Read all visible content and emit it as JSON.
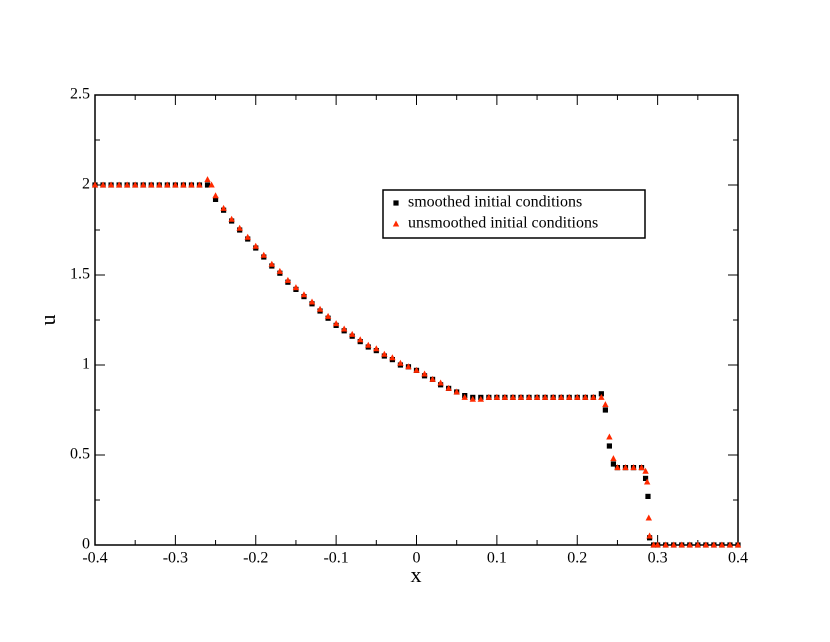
{
  "chart_data": {
    "type": "scatter",
    "x_label": "x",
    "y_label": "u",
    "xlim": [
      -0.4,
      0.4
    ],
    "ylim": [
      0,
      2.5
    ],
    "xticks": [
      -0.4,
      -0.3,
      -0.2,
      -0.1,
      0,
      0.1,
      0.2,
      0.3,
      0.4
    ],
    "yticks": [
      0,
      0.5,
      1,
      1.5,
      2,
      2.5
    ],
    "xminorticks": [
      -0.35,
      -0.25,
      -0.15,
      -0.05,
      0.05,
      0.15,
      0.25,
      0.35
    ],
    "yminorticks": [
      0.25,
      0.75,
      1.25,
      1.75,
      2.25
    ],
    "legend_loc": "upper right",
    "series": [
      {
        "name": "smoothed initial conditions",
        "color": "#000000",
        "marker": "square",
        "x": [
          -0.4,
          -0.39,
          -0.38,
          -0.37,
          -0.36,
          -0.35,
          -0.34,
          -0.33,
          -0.32,
          -0.31,
          -0.3,
          -0.29,
          -0.28,
          -0.27,
          -0.26,
          -0.25,
          -0.24,
          -0.23,
          -0.22,
          -0.21,
          -0.2,
          -0.19,
          -0.18,
          -0.17,
          -0.16,
          -0.15,
          -0.14,
          -0.13,
          -0.12,
          -0.11,
          -0.1,
          -0.09,
          -0.08,
          -0.07,
          -0.06,
          -0.05,
          -0.04,
          -0.03,
          -0.02,
          -0.01,
          0,
          0.01,
          0.02,
          0.03,
          0.04,
          0.05,
          0.06,
          0.07,
          0.08,
          0.09,
          0.1,
          0.11,
          0.12,
          0.13,
          0.14,
          0.15,
          0.16,
          0.17,
          0.18,
          0.19,
          0.2,
          0.21,
          0.22,
          0.23,
          0.235,
          0.24,
          0.245,
          0.25,
          0.26,
          0.27,
          0.28,
          0.285,
          0.288,
          0.29,
          0.295,
          0.3,
          0.31,
          0.32,
          0.33,
          0.34,
          0.35,
          0.36,
          0.37,
          0.38,
          0.39,
          0.4
        ],
        "values": [
          2,
          2,
          2,
          2,
          2,
          2,
          2,
          2,
          2,
          2,
          2,
          2,
          2,
          2,
          2,
          1.92,
          1.86,
          1.8,
          1.75,
          1.7,
          1.65,
          1.6,
          1.55,
          1.51,
          1.46,
          1.42,
          1.38,
          1.34,
          1.3,
          1.26,
          1.22,
          1.19,
          1.16,
          1.13,
          1.1,
          1.08,
          1.05,
          1.03,
          1.0,
          0.99,
          0.97,
          0.94,
          0.92,
          0.89,
          0.87,
          0.85,
          0.83,
          0.82,
          0.82,
          0.82,
          0.82,
          0.82,
          0.82,
          0.82,
          0.82,
          0.82,
          0.82,
          0.82,
          0.82,
          0.82,
          0.82,
          0.82,
          0.82,
          0.84,
          0.75,
          0.55,
          0.45,
          0.43,
          0.43,
          0.43,
          0.43,
          0.37,
          0.27,
          0.04,
          0,
          0,
          0,
          0,
          0,
          0,
          0,
          0,
          0,
          0,
          0,
          0
        ]
      },
      {
        "name": "unsmoothed initial conditions",
        "color": "#ff2a00",
        "marker": "triangle",
        "x": [
          -0.4,
          -0.39,
          -0.38,
          -0.37,
          -0.36,
          -0.35,
          -0.34,
          -0.33,
          -0.32,
          -0.31,
          -0.3,
          -0.29,
          -0.28,
          -0.27,
          -0.26,
          -0.255,
          -0.25,
          -0.24,
          -0.23,
          -0.22,
          -0.21,
          -0.2,
          -0.19,
          -0.18,
          -0.17,
          -0.16,
          -0.15,
          -0.14,
          -0.13,
          -0.12,
          -0.11,
          -0.1,
          -0.09,
          -0.08,
          -0.07,
          -0.06,
          -0.05,
          -0.04,
          -0.03,
          -0.02,
          -0.01,
          0,
          0.01,
          0.02,
          0.03,
          0.04,
          0.05,
          0.06,
          0.07,
          0.08,
          0.09,
          0.1,
          0.11,
          0.12,
          0.13,
          0.14,
          0.15,
          0.16,
          0.17,
          0.18,
          0.19,
          0.2,
          0.21,
          0.22,
          0.23,
          0.235,
          0.24,
          0.245,
          0.25,
          0.26,
          0.27,
          0.28,
          0.285,
          0.287,
          0.289,
          0.29,
          0.295,
          0.3,
          0.31,
          0.32,
          0.33,
          0.34,
          0.35,
          0.36,
          0.37,
          0.38,
          0.39,
          0.4
        ],
        "values": [
          2,
          2,
          2,
          2,
          2,
          2,
          2,
          2,
          2,
          2,
          2,
          2,
          2,
          2,
          2.03,
          2.0,
          1.94,
          1.87,
          1.81,
          1.76,
          1.71,
          1.66,
          1.61,
          1.56,
          1.52,
          1.47,
          1.43,
          1.39,
          1.35,
          1.31,
          1.27,
          1.23,
          1.2,
          1.17,
          1.14,
          1.11,
          1.09,
          1.06,
          1.04,
          1.01,
          0.99,
          0.97,
          0.95,
          0.92,
          0.9,
          0.87,
          0.85,
          0.82,
          0.81,
          0.81,
          0.82,
          0.82,
          0.82,
          0.82,
          0.82,
          0.82,
          0.82,
          0.82,
          0.82,
          0.82,
          0.82,
          0.82,
          0.82,
          0.82,
          0.82,
          0.78,
          0.6,
          0.48,
          0.43,
          0.43,
          0.43,
          0.43,
          0.41,
          0.35,
          0.15,
          0.05,
          0,
          0,
          0,
          0,
          0,
          0,
          0,
          0,
          0,
          0,
          0,
          0
        ]
      }
    ]
  }
}
